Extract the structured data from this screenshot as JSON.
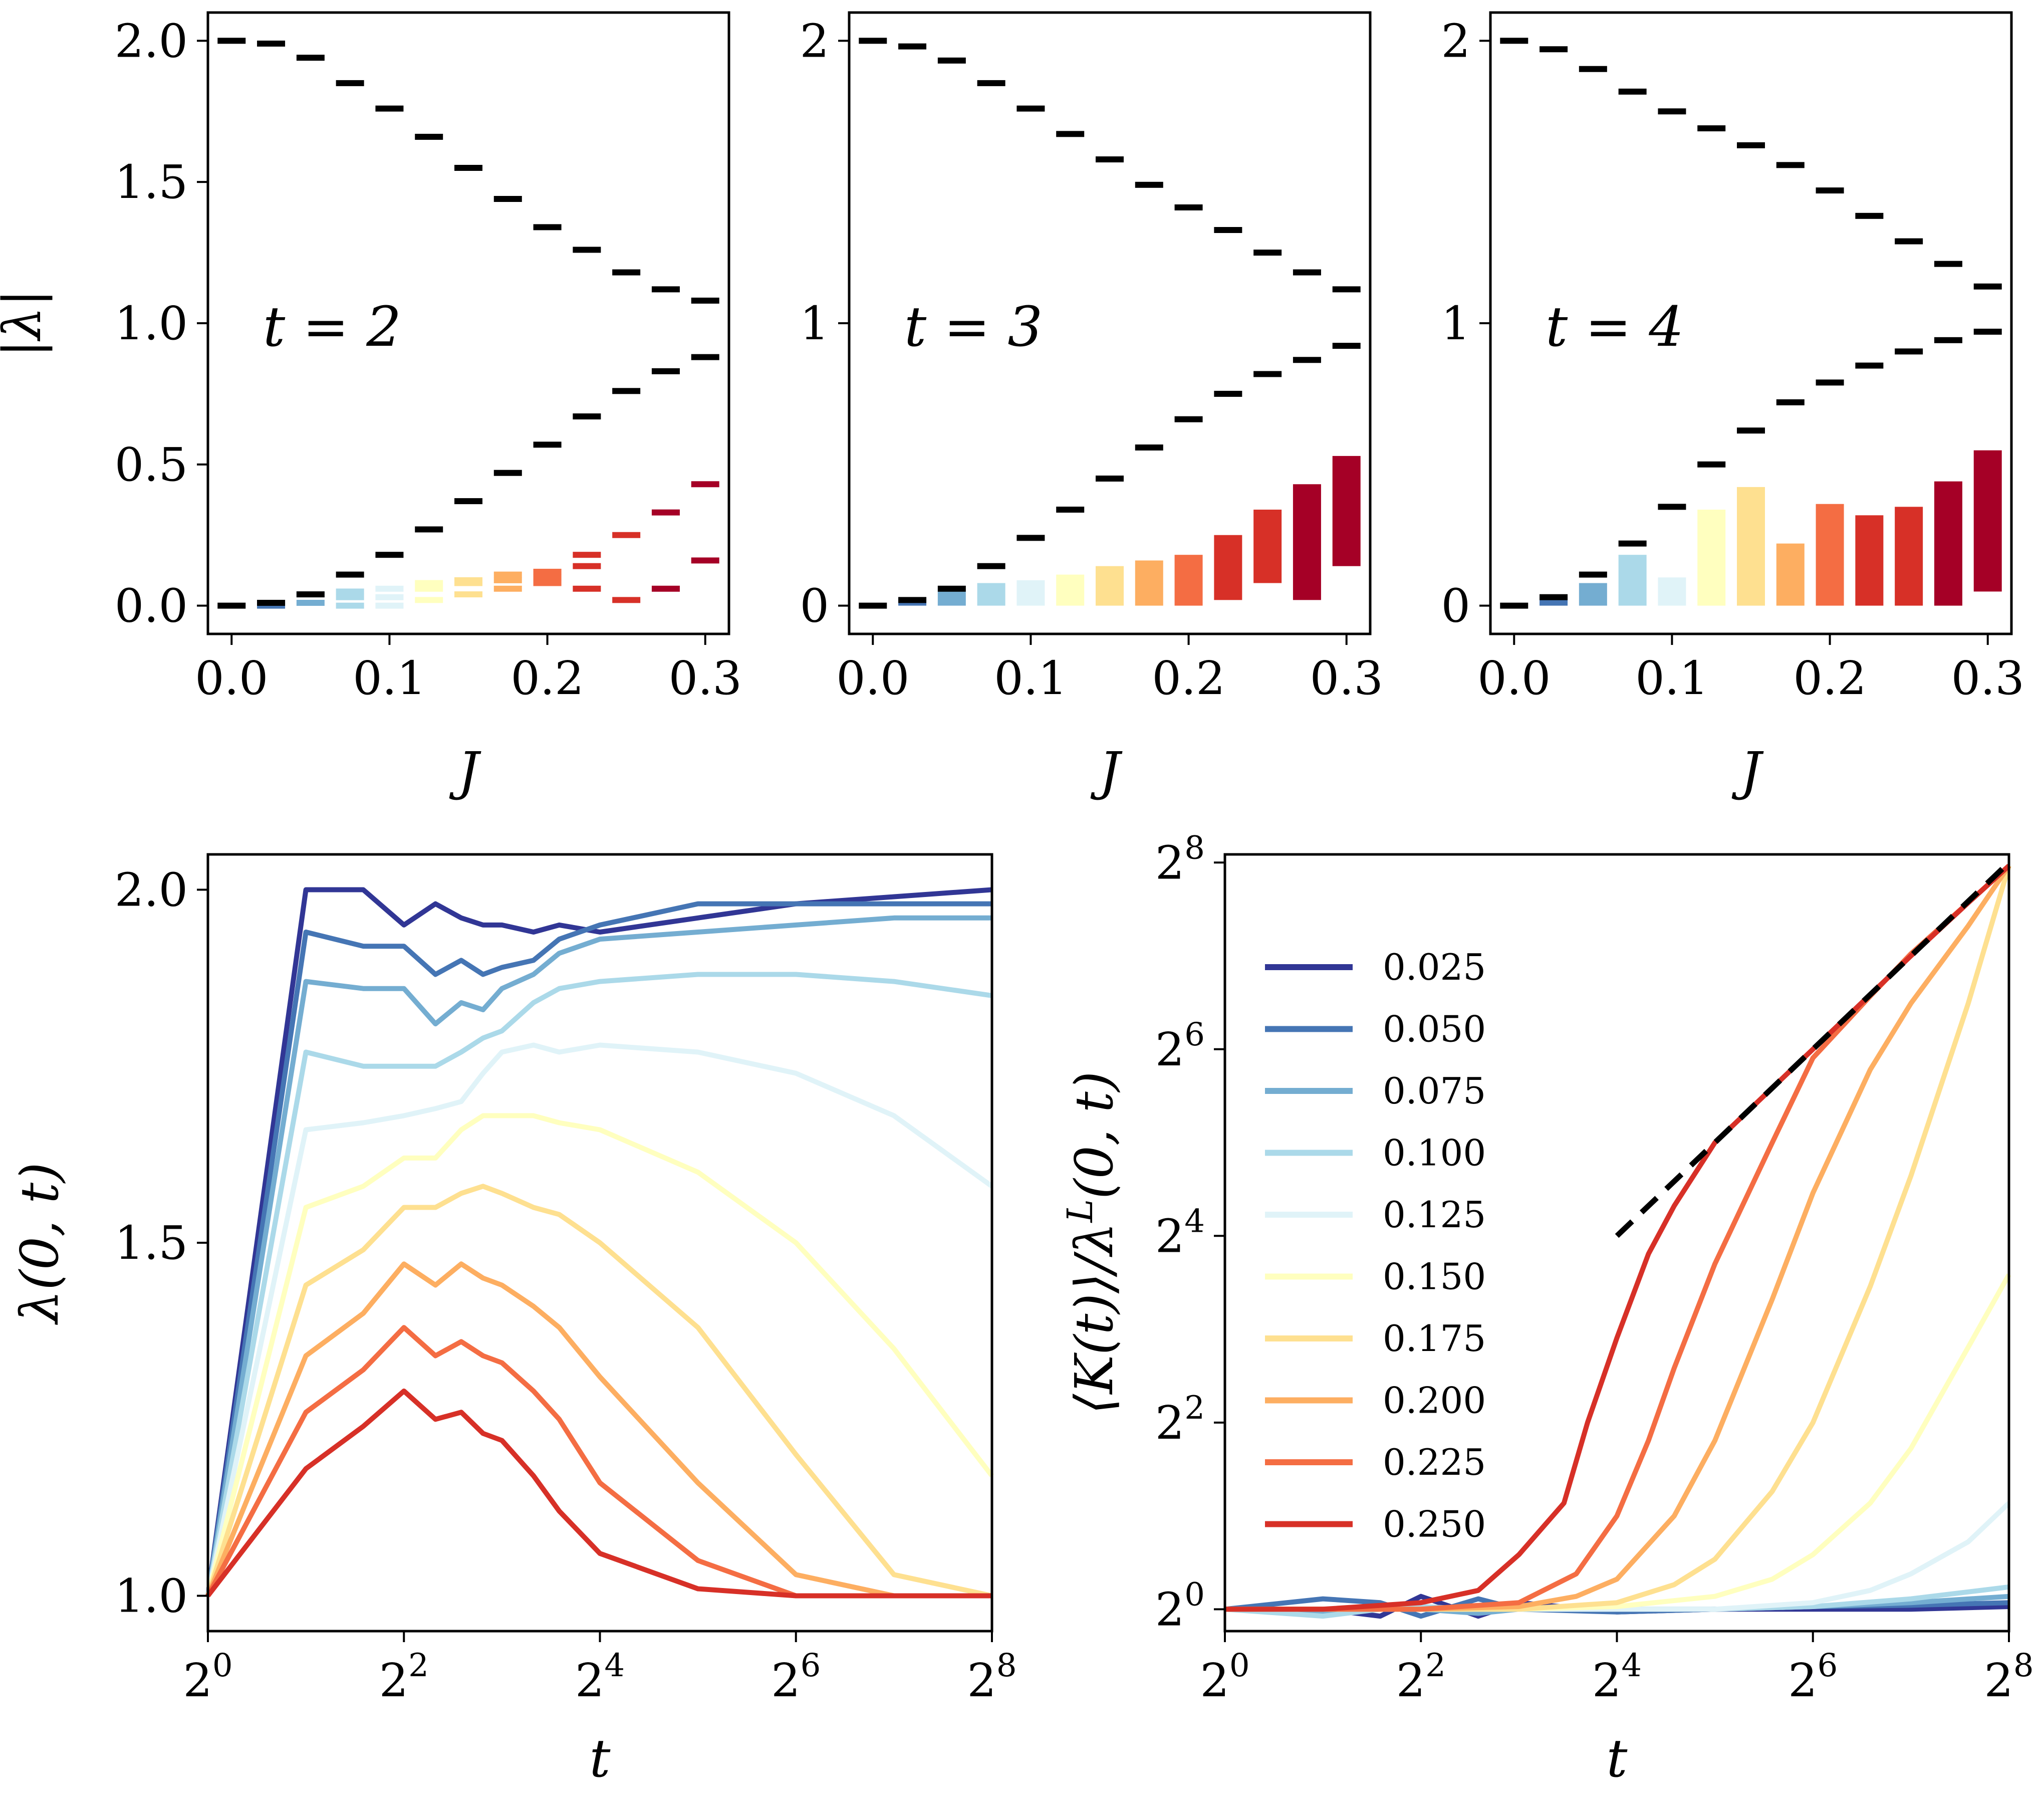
{
  "chart_data": [
    {
      "type": "scatter",
      "annotation": "t = 2",
      "xlabel": "J",
      "ylabel": "|λ|",
      "xlim": [
        -0.015,
        0.315
      ],
      "ylim": [
        -0.1,
        2.1
      ],
      "xticks": [
        0.0,
        0.1,
        0.2,
        0.3
      ],
      "xtick_labels": [
        "0.0",
        "0.1",
        "0.2",
        "0.3"
      ],
      "yticks": [
        0.0,
        0.5,
        1.0,
        1.5,
        2.0
      ],
      "ytick_labels": [
        "0.0",
        "0.5",
        "1.0",
        "1.5",
        "2.0"
      ],
      "J": [
        0.0,
        0.025,
        0.05,
        0.075,
        0.1,
        0.125,
        0.15,
        0.175,
        0.2,
        0.225,
        0.25,
        0.275,
        0.3
      ],
      "upper_branch": [
        2.0,
        1.99,
        1.94,
        1.85,
        1.76,
        1.66,
        1.55,
        1.44,
        1.34,
        1.26,
        1.18,
        1.12,
        1.08
      ],
      "lower_branch": [
        0.0,
        0.01,
        0.04,
        0.11,
        0.18,
        0.27,
        0.37,
        0.47,
        0.57,
        0.67,
        0.76,
        0.83,
        0.88
      ],
      "colored_levels": [
        [],
        [
          0.0,
          0.01
        ],
        [
          0.01,
          0.04
        ],
        [
          0.0,
          0.03,
          0.05
        ],
        [
          0.0,
          0.03,
          0.06
        ],
        [
          0.02,
          0.06,
          0.08
        ],
        [
          0.04,
          0.08,
          0.09
        ],
        [
          0.06,
          0.09,
          0.11
        ],
        [
          0.08,
          0.1,
          0.12
        ],
        [
          0.06,
          0.14,
          0.18
        ],
        [
          0.02,
          0.25
        ],
        [
          0.06,
          0.33
        ],
        [
          0.16,
          0.43
        ]
      ]
    },
    {
      "type": "scatter",
      "annotation": "t = 3",
      "xlabel": "J",
      "ylabel": "",
      "xlim": [
        -0.015,
        0.315
      ],
      "ylim": [
        -0.1,
        2.1
      ],
      "xticks": [
        0.0,
        0.1,
        0.2,
        0.3
      ],
      "xtick_labels": [
        "0.0",
        "0.1",
        "0.2",
        "0.3"
      ],
      "yticks": [
        0,
        1,
        2
      ],
      "ytick_labels": [
        "0",
        "1",
        "2"
      ],
      "J": [
        0.0,
        0.025,
        0.05,
        0.075,
        0.1,
        0.125,
        0.15,
        0.175,
        0.2,
        0.225,
        0.25,
        0.275,
        0.3
      ],
      "upper_branch": [
        2.0,
        1.98,
        1.93,
        1.85,
        1.76,
        1.67,
        1.58,
        1.49,
        1.41,
        1.33,
        1.25,
        1.18,
        1.12
      ],
      "lower_branch": [
        0.0,
        0.02,
        0.06,
        0.14,
        0.24,
        0.34,
        0.45,
        0.56,
        0.66,
        0.75,
        0.82,
        0.87,
        0.92
      ],
      "colored_blocks": [
        [
          0,
          0
        ],
        [
          0.0,
          0.03
        ],
        [
          0.0,
          0.05
        ],
        [
          0.0,
          0.08
        ],
        [
          0.0,
          0.09
        ],
        [
          0.0,
          0.11
        ],
        [
          0.0,
          0.14
        ],
        [
          0.0,
          0.16
        ],
        [
          0.0,
          0.18
        ],
        [
          0.02,
          0.25
        ],
        [
          0.08,
          0.34
        ],
        [
          0.02,
          0.43
        ],
        [
          0.14,
          0.53
        ]
      ]
    },
    {
      "type": "scatter",
      "annotation": "t = 4",
      "xlabel": "J",
      "ylabel": "",
      "xlim": [
        -0.015,
        0.315
      ],
      "ylim": [
        -0.1,
        2.1
      ],
      "xticks": [
        0.0,
        0.1,
        0.2,
        0.3
      ],
      "xtick_labels": [
        "0.0",
        "0.1",
        "0.2",
        "0.3"
      ],
      "yticks": [
        0,
        1,
        2
      ],
      "ytick_labels": [
        "0",
        "1",
        "2"
      ],
      "J": [
        0.0,
        0.025,
        0.05,
        0.075,
        0.1,
        0.125,
        0.15,
        0.175,
        0.2,
        0.225,
        0.25,
        0.275,
        0.3
      ],
      "upper_branch": [
        2.0,
        1.97,
        1.9,
        1.82,
        1.75,
        1.69,
        1.63,
        1.56,
        1.47,
        1.38,
        1.29,
        1.21,
        1.13
      ],
      "lower_branch": [
        0.0,
        0.03,
        0.11,
        0.22,
        0.35,
        0.5,
        0.62,
        0.72,
        0.79,
        0.85,
        0.9,
        0.94,
        0.97
      ],
      "colored_blocks": [
        [
          0,
          0
        ],
        [
          0.0,
          0.03
        ],
        [
          0.0,
          0.08
        ],
        [
          0.0,
          0.18
        ],
        [
          0.0,
          0.1
        ],
        [
          0.0,
          0.34
        ],
        [
          0.0,
          0.42
        ],
        [
          0.0,
          0.22
        ],
        [
          0.0,
          0.36
        ],
        [
          0.0,
          0.32
        ],
        [
          0.0,
          0.35
        ],
        [
          0.0,
          0.44
        ],
        [
          0.05,
          0.55
        ]
      ]
    },
    {
      "type": "line",
      "xlabel": "t",
      "ylabel": "λ(0, t)",
      "xscale": "log2",
      "xlim": [
        1,
        256
      ],
      "ylim": [
        0.95,
        2.05
      ],
      "xticks": [
        1,
        4,
        16,
        64,
        256
      ],
      "xtick_labels": [
        [
          "2",
          "0"
        ],
        [
          "2",
          "2"
        ],
        [
          "2",
          "4"
        ],
        [
          "2",
          "6"
        ],
        [
          "2",
          "8"
        ]
      ],
      "yticks": [
        1.0,
        1.5,
        2.0
      ],
      "ytick_labels": [
        "1.0",
        "1.5",
        "2.0"
      ],
      "series_colors": [
        "#313695",
        "#4575b4",
        "#74add1",
        "#abd9e9",
        "#e0f3f8",
        "#ffffbf",
        "#fee090",
        "#fdae61",
        "#f46d43",
        "#d73027"
      ],
      "series": [
        {
          "J": 0.025,
          "t": [
            1,
            2,
            3,
            4,
            5,
            6,
            7,
            8,
            10,
            12,
            16,
            32,
            64,
            128,
            256
          ],
          "values": [
            1.0,
            2.0,
            2.0,
            1.95,
            1.98,
            1.96,
            1.95,
            1.95,
            1.94,
            1.95,
            1.94,
            1.96,
            1.98,
            1.99,
            2.0
          ]
        },
        {
          "J": 0.05,
          "t": [
            1,
            2,
            3,
            4,
            5,
            6,
            7,
            8,
            10,
            12,
            16,
            32,
            64,
            128,
            256
          ],
          "values": [
            1.0,
            1.94,
            1.92,
            1.92,
            1.88,
            1.9,
            1.88,
            1.89,
            1.9,
            1.93,
            1.95,
            1.98,
            1.98,
            1.98,
            1.98
          ]
        },
        {
          "J": 0.075,
          "t": [
            1,
            2,
            3,
            4,
            5,
            6,
            7,
            8,
            10,
            12,
            16,
            32,
            64,
            128,
            256
          ],
          "values": [
            1.0,
            1.87,
            1.86,
            1.86,
            1.81,
            1.84,
            1.83,
            1.86,
            1.88,
            1.91,
            1.93,
            1.94,
            1.95,
            1.96,
            1.96
          ]
        },
        {
          "J": 0.1,
          "t": [
            1,
            2,
            3,
            4,
            5,
            6,
            7,
            8,
            10,
            12,
            16,
            32,
            64,
            128,
            256
          ],
          "values": [
            1.0,
            1.77,
            1.75,
            1.75,
            1.75,
            1.77,
            1.79,
            1.8,
            1.84,
            1.86,
            1.87,
            1.88,
            1.88,
            1.87,
            1.85
          ]
        },
        {
          "J": 0.125,
          "t": [
            1,
            2,
            3,
            4,
            5,
            6,
            7,
            8,
            10,
            12,
            16,
            32,
            64,
            128,
            256
          ],
          "values": [
            1.0,
            1.66,
            1.67,
            1.68,
            1.69,
            1.7,
            1.74,
            1.77,
            1.78,
            1.77,
            1.78,
            1.77,
            1.74,
            1.68,
            1.58
          ]
        },
        {
          "J": 0.15,
          "t": [
            1,
            2,
            3,
            4,
            5,
            6,
            7,
            8,
            10,
            12,
            16,
            32,
            64,
            128,
            256
          ],
          "values": [
            1.0,
            1.55,
            1.58,
            1.62,
            1.62,
            1.66,
            1.68,
            1.68,
            1.68,
            1.67,
            1.66,
            1.6,
            1.5,
            1.35,
            1.17
          ]
        },
        {
          "J": 0.175,
          "t": [
            1,
            2,
            3,
            4,
            5,
            6,
            7,
            8,
            10,
            12,
            16,
            32,
            64,
            128,
            256
          ],
          "values": [
            1.0,
            1.44,
            1.49,
            1.55,
            1.55,
            1.57,
            1.58,
            1.57,
            1.55,
            1.54,
            1.5,
            1.38,
            1.2,
            1.03,
            1.0
          ]
        },
        {
          "J": 0.2,
          "t": [
            1,
            2,
            3,
            4,
            5,
            6,
            7,
            8,
            10,
            12,
            16,
            32,
            64,
            128,
            256
          ],
          "values": [
            1.0,
            1.34,
            1.4,
            1.47,
            1.44,
            1.47,
            1.45,
            1.44,
            1.41,
            1.38,
            1.31,
            1.16,
            1.03,
            1.0,
            1.0
          ]
        },
        {
          "J": 0.225,
          "t": [
            1,
            2,
            3,
            4,
            5,
            6,
            7,
            8,
            10,
            12,
            16,
            32,
            64,
            128,
            256
          ],
          "values": [
            1.0,
            1.26,
            1.32,
            1.38,
            1.34,
            1.36,
            1.34,
            1.33,
            1.29,
            1.25,
            1.16,
            1.05,
            1.0,
            1.0,
            1.0
          ]
        },
        {
          "J": 0.25,
          "t": [
            1,
            2,
            3,
            4,
            5,
            6,
            7,
            8,
            10,
            12,
            16,
            32,
            64,
            128,
            256
          ],
          "values": [
            1.0,
            1.18,
            1.24,
            1.29,
            1.25,
            1.26,
            1.23,
            1.22,
            1.17,
            1.12,
            1.06,
            1.01,
            1.0,
            1.0,
            1.0
          ]
        }
      ]
    },
    {
      "type": "line",
      "xlabel": "t",
      "ylabel": "⟨K(t)⟩/λ",
      "ylabel_sup": "L",
      "ylabel_tail": "(0, t)",
      "xscale": "log2",
      "yscale": "log2",
      "xlim": [
        1,
        256
      ],
      "ylim": [
        0.85,
        272
      ],
      "xticks": [
        1,
        4,
        16,
        64,
        256
      ],
      "xtick_labels": [
        [
          "2",
          "0"
        ],
        [
          "2",
          "2"
        ],
        [
          "2",
          "4"
        ],
        [
          "2",
          "6"
        ],
        [
          "2",
          "8"
        ]
      ],
      "yticks": [
        1,
        4,
        16,
        64,
        256
      ],
      "ytick_labels": [
        [
          "2",
          "0"
        ],
        [
          "2",
          "2"
        ],
        [
          "2",
          "4"
        ],
        [
          "2",
          "6"
        ],
        [
          "2",
          "8"
        ]
      ],
      "legend_placement": "upper-left",
      "reference_line": {
        "style": "dashed",
        "t": [
          16,
          256
        ],
        "values": [
          16,
          256
        ]
      },
      "series": [
        {
          "name": "0.025",
          "color": "#313695",
          "t": [
            1,
            2,
            3,
            4,
            6,
            8,
            16,
            32,
            64,
            128,
            256
          ],
          "values": [
            1.0,
            1.0,
            0.95,
            1.1,
            0.95,
            1.05,
            0.98,
            1.0,
            1.0,
            1.0,
            1.02
          ]
        },
        {
          "name": "0.050",
          "color": "#4575b4",
          "t": [
            1,
            2,
            3,
            4,
            6,
            8,
            16,
            32,
            64,
            128,
            256
          ],
          "values": [
            1.0,
            1.08,
            1.05,
            0.95,
            1.08,
            1.0,
            0.98,
            1.0,
            1.02,
            1.03,
            1.05
          ]
        },
        {
          "name": "0.075",
          "color": "#74add1",
          "t": [
            1,
            2,
            3,
            4,
            6,
            8,
            16,
            32,
            64,
            128,
            256
          ],
          "values": [
            1.0,
            0.97,
            1.0,
            1.0,
            0.97,
            1.0,
            1.0,
            1.0,
            1.02,
            1.05,
            1.1
          ]
        },
        {
          "name": "0.100",
          "color": "#abd9e9",
          "t": [
            1,
            2,
            3,
            4,
            6,
            8,
            16,
            32,
            64,
            128,
            256
          ],
          "values": [
            1.0,
            0.95,
            1.0,
            1.02,
            1.0,
            1.0,
            1.0,
            1.0,
            1.02,
            1.08,
            1.18
          ]
        },
        {
          "name": "0.125",
          "color": "#e0f3f8",
          "t": [
            1,
            2,
            4,
            8,
            16,
            32,
            64,
            96,
            128,
            192,
            256
          ],
          "values": [
            1.0,
            1.0,
            1.0,
            1.0,
            1.0,
            1.0,
            1.05,
            1.15,
            1.3,
            1.65,
            2.2
          ]
        },
        {
          "name": "0.150",
          "color": "#ffffbf",
          "t": [
            1,
            2,
            4,
            8,
            16,
            32,
            48,
            64,
            96,
            128,
            192,
            256
          ],
          "values": [
            1.0,
            1.0,
            1.0,
            1.0,
            1.02,
            1.1,
            1.25,
            1.5,
            2.2,
            3.3,
            7.0,
            12.0
          ]
        },
        {
          "name": "0.175",
          "color": "#fee090",
          "t": [
            1,
            2,
            4,
            8,
            16,
            24,
            32,
            48,
            64,
            96,
            128,
            192,
            256
          ],
          "values": [
            1.0,
            1.0,
            1.0,
            1.0,
            1.05,
            1.2,
            1.45,
            2.4,
            4.0,
            11.0,
            25.0,
            90.0,
            250.0
          ]
        },
        {
          "name": "0.200",
          "color": "#fdae61",
          "t": [
            1,
            2,
            4,
            8,
            12,
            16,
            24,
            32,
            48,
            64,
            96,
            128,
            192,
            256
          ],
          "values": [
            1.0,
            1.0,
            1.0,
            1.02,
            1.1,
            1.25,
            2.0,
            3.5,
            10.0,
            22.0,
            55.0,
            90.0,
            160.0,
            250.0
          ]
        },
        {
          "name": "0.225",
          "color": "#f46d43",
          "t": [
            1,
            2,
            4,
            8,
            12,
            16,
            20,
            24,
            32,
            48,
            64,
            96,
            128,
            192,
            256
          ],
          "values": [
            1.0,
            1.0,
            1.0,
            1.05,
            1.3,
            2.0,
            3.5,
            6.0,
            13.0,
            32.0,
            60.0,
            95.0,
            130.0,
            190.0,
            250.0
          ]
        },
        {
          "name": "0.250",
          "color": "#d73027",
          "t": [
            1,
            2,
            4,
            6,
            8,
            11,
            13,
            16,
            20,
            24,
            32,
            48,
            64,
            96,
            128,
            192,
            256
          ],
          "values": [
            1.0,
            1.0,
            1.05,
            1.15,
            1.5,
            2.2,
            4.0,
            7.5,
            14.0,
            20.0,
            32.0,
            48.0,
            64.0,
            96.0,
            128.0,
            190.0,
            250.0
          ]
        }
      ]
    }
  ]
}
